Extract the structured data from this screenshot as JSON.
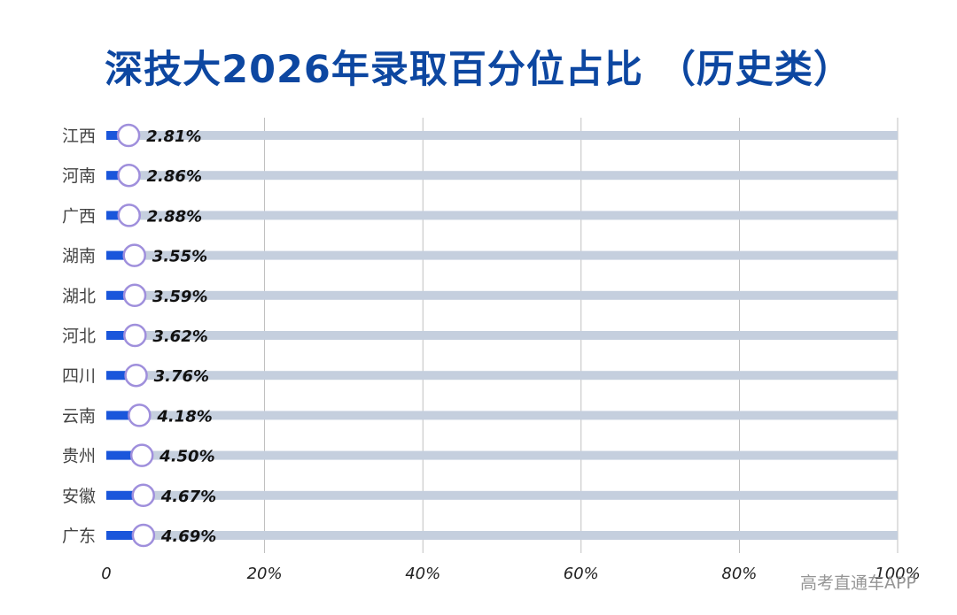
{
  "title": "深技大2026年录取百分位占比 （历史类）",
  "watermark": "高考直通车APP",
  "colors": {
    "title": "#0d47a1",
    "track": "#c5cfde",
    "bar": "#1a56db",
    "marker_stroke": "#9f8fdc",
    "marker_fill": "#ffffff",
    "grid": "#b0b0b0",
    "category_label": "#444444",
    "value_label": "#111111"
  },
  "chart_data": {
    "type": "bar",
    "orientation": "horizontal",
    "categories": [
      "江西",
      "河南",
      "广西",
      "湖南",
      "湖北",
      "河北",
      "四川",
      "云南",
      "贵州",
      "安徽",
      "广东"
    ],
    "values": [
      2.81,
      2.86,
      2.88,
      3.55,
      3.59,
      3.62,
      3.76,
      4.18,
      4.5,
      4.67,
      4.69
    ],
    "value_labels": [
      "2.81%",
      "2.86%",
      "2.88%",
      "3.55%",
      "3.59%",
      "3.62%",
      "3.76%",
      "4.18%",
      "4.50%",
      "4.67%",
      "4.69%"
    ],
    "xlim": [
      0,
      100
    ],
    "xticks": [
      0,
      20,
      40,
      60,
      80,
      100
    ],
    "xtick_labels": [
      "0",
      "20%",
      "40%",
      "60%",
      "80%",
      "100%"
    ],
    "grid": "vertical",
    "legend": "none"
  }
}
